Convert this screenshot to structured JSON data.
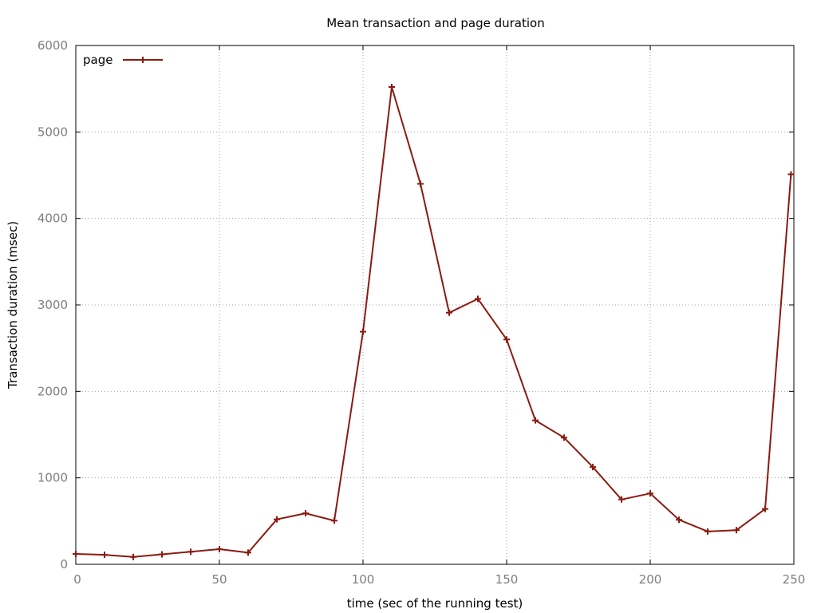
{
  "chart_data": {
    "type": "line",
    "title": "Mean transaction and page duration",
    "xlabel": "time (sec of the running test)",
    "ylabel": "Transaction duration (msec)",
    "xlim": [
      0,
      250
    ],
    "ylim": [
      0,
      6000
    ],
    "x_ticks": [
      0,
      50,
      100,
      150,
      200,
      250
    ],
    "y_ticks": [
      0,
      1000,
      2000,
      3000,
      4000,
      5000,
      6000
    ],
    "grid": true,
    "legend_position": "top-left",
    "series": [
      {
        "name": "page",
        "color": "#8b1a10",
        "marker": "plus",
        "points": [
          {
            "x": 0,
            "y": 120
          },
          {
            "x": 10,
            "y": 110
          },
          {
            "x": 20,
            "y": 85
          },
          {
            "x": 30,
            "y": 115
          },
          {
            "x": 40,
            "y": 145
          },
          {
            "x": 50,
            "y": 175
          },
          {
            "x": 60,
            "y": 135
          },
          {
            "x": 70,
            "y": 520
          },
          {
            "x": 80,
            "y": 590
          },
          {
            "x": 90,
            "y": 505
          },
          {
            "x": 100,
            "y": 2690
          },
          {
            "x": 110,
            "y": 5520
          },
          {
            "x": 120,
            "y": 4400
          },
          {
            "x": 130,
            "y": 2910
          },
          {
            "x": 140,
            "y": 3070
          },
          {
            "x": 150,
            "y": 2600
          },
          {
            "x": 160,
            "y": 1665
          },
          {
            "x": 170,
            "y": 1465
          },
          {
            "x": 180,
            "y": 1125
          },
          {
            "x": 190,
            "y": 750
          },
          {
            "x": 200,
            "y": 820
          },
          {
            "x": 210,
            "y": 515
          },
          {
            "x": 220,
            "y": 380
          },
          {
            "x": 230,
            "y": 395
          },
          {
            "x": 240,
            "y": 640
          },
          {
            "x": 249,
            "y": 4510
          }
        ]
      }
    ]
  }
}
